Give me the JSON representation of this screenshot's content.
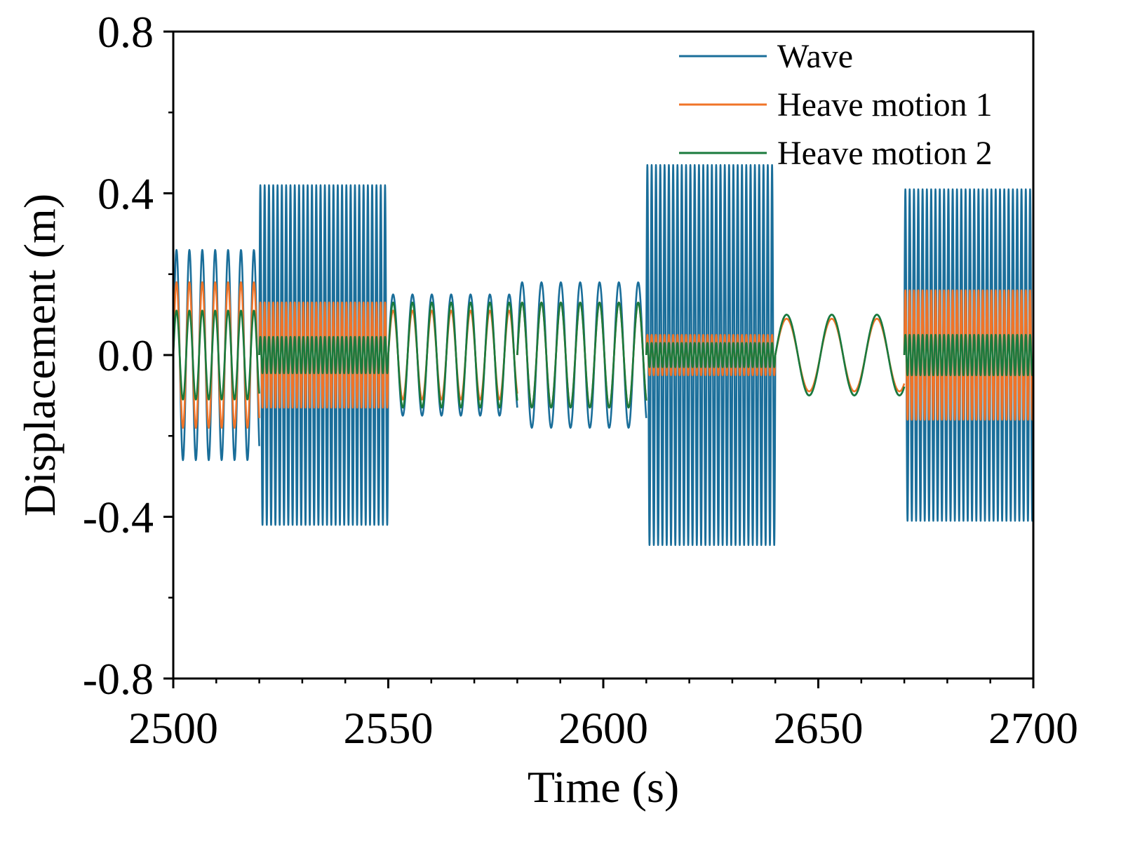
{
  "chart_data": {
    "type": "line",
    "title": "",
    "xlabel": "Time (s)",
    "ylabel": "Displacement (m)",
    "xlim": [
      2500,
      2700
    ],
    "ylim": [
      -0.8,
      0.8
    ],
    "x_ticks": [
      2500,
      2550,
      2600,
      2650,
      2700
    ],
    "x_tick_labels": [
      "2500",
      "2550",
      "2600",
      "2650",
      "2700"
    ],
    "x_minor_step": 10,
    "y_ticks": [
      -0.8,
      -0.4,
      0.0,
      0.4,
      0.8
    ],
    "y_tick_labels": [
      "-0.8",
      "-0.4",
      "0.0",
      "0.4",
      "0.8"
    ],
    "y_minor_step": 0.2,
    "grid": false,
    "legend_position": "top-right",
    "series": [
      {
        "name": "Wave",
        "color": "#1a6e9a",
        "segments": [
          {
            "t_start": 2500,
            "t_end": 2520,
            "period": 3.0,
            "amplitude": 0.26
          },
          {
            "t_start": 2520,
            "t_end": 2550,
            "period": 1.0,
            "amplitude": 0.42
          },
          {
            "t_start": 2550,
            "t_end": 2580,
            "period": 4.5,
            "amplitude": 0.15
          },
          {
            "t_start": 2580,
            "t_end": 2610,
            "period": 4.5,
            "amplitude": 0.18
          },
          {
            "t_start": 2610,
            "t_end": 2640,
            "period": 1.0,
            "amplitude": 0.47
          },
          {
            "t_start": 2640,
            "t_end": 2670,
            "period": 10.5,
            "amplitude": 0.1
          },
          {
            "t_start": 2670,
            "t_end": 2700,
            "period": 1.0,
            "amplitude": 0.41
          }
        ]
      },
      {
        "name": "Heave motion 1",
        "color": "#f07428",
        "segments": [
          {
            "t_start": 2500,
            "t_end": 2520,
            "period": 3.0,
            "amplitude": 0.18
          },
          {
            "t_start": 2520,
            "t_end": 2550,
            "period": 1.0,
            "amplitude": 0.13
          },
          {
            "t_start": 2550,
            "t_end": 2580,
            "period": 4.5,
            "amplitude": 0.11
          },
          {
            "t_start": 2580,
            "t_end": 2610,
            "period": 4.5,
            "amplitude": 0.13
          },
          {
            "t_start": 2610,
            "t_end": 2640,
            "period": 1.0,
            "amplitude": 0.05
          },
          {
            "t_start": 2640,
            "t_end": 2670,
            "period": 10.5,
            "amplitude": 0.09
          },
          {
            "t_start": 2670,
            "t_end": 2700,
            "period": 1.0,
            "amplitude": 0.16
          }
        ]
      },
      {
        "name": "Heave motion 2",
        "color": "#1a7a3c",
        "segments": [
          {
            "t_start": 2500,
            "t_end": 2520,
            "period": 3.0,
            "amplitude": 0.11
          },
          {
            "t_start": 2520,
            "t_end": 2550,
            "period": 1.0,
            "amplitude": 0.045
          },
          {
            "t_start": 2550,
            "t_end": 2580,
            "period": 4.5,
            "amplitude": 0.13
          },
          {
            "t_start": 2580,
            "t_end": 2610,
            "period": 4.5,
            "amplitude": 0.13
          },
          {
            "t_start": 2610,
            "t_end": 2640,
            "period": 1.0,
            "amplitude": 0.03
          },
          {
            "t_start": 2640,
            "t_end": 2670,
            "period": 10.5,
            "amplitude": 0.1
          },
          {
            "t_start": 2670,
            "t_end": 2700,
            "period": 1.0,
            "amplitude": 0.05
          }
        ]
      }
    ]
  }
}
